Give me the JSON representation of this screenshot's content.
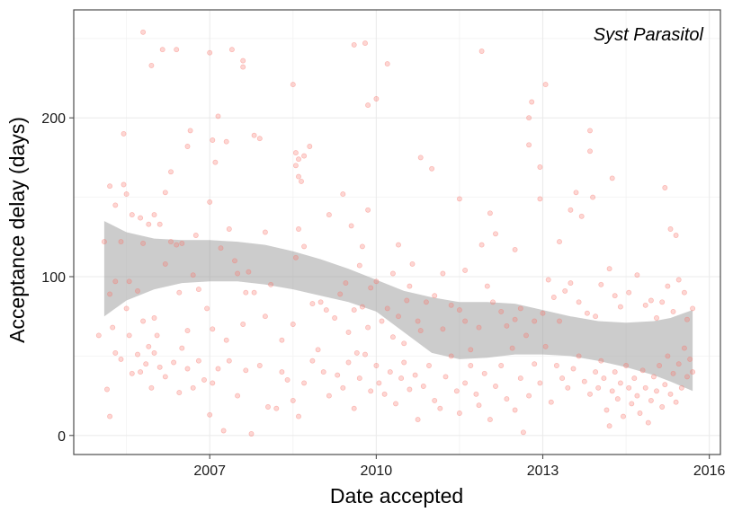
{
  "chart_data": {
    "type": "scatter",
    "title": "",
    "annotation": "Syst Parasitol",
    "xlabel": "Date accepted",
    "ylabel": "Acceptance delay (days)",
    "xlim": [
      2004.55,
      2016.2
    ],
    "ylim": [
      -12,
      268
    ],
    "x_ticks": [
      2007,
      2010,
      2013,
      2016
    ],
    "y_ticks": [
      0,
      100,
      200
    ],
    "grid": true,
    "point_color": "#F8766D",
    "point_alpha": 0.3,
    "ribbon_color": "#999999",
    "ribbon_alpha": 0.5,
    "smooth_band": {
      "x": [
        2005.1,
        2005.5,
        2006.0,
        2006.5,
        2007.0,
        2007.5,
        2008.0,
        2008.5,
        2009.0,
        2009.5,
        2010.0,
        2010.5,
        2011.0,
        2011.5,
        2012.0,
        2012.5,
        2013.0,
        2013.5,
        2014.0,
        2014.5,
        2015.0,
        2015.3,
        2015.7
      ],
      "lower": [
        75,
        85,
        92,
        96,
        97,
        97,
        95,
        92,
        88,
        84,
        78,
        65,
        52,
        48,
        49,
        51,
        51,
        50,
        47,
        43,
        38,
        34,
        28
      ],
      "upper": [
        135,
        128,
        124,
        123,
        123,
        122,
        120,
        116,
        111,
        105,
        98,
        91,
        87,
        84,
        84,
        83,
        79,
        75,
        72,
        71,
        72,
        74,
        79
      ]
    },
    "points": [
      [
        2005.8,
        254
      ],
      [
        2005.95,
        233
      ],
      [
        2006.15,
        243
      ],
      [
        2006.4,
        243
      ],
      [
        2007.0,
        241
      ],
      [
        2007.4,
        243
      ],
      [
        2007.6,
        236
      ],
      [
        2007.6,
        232
      ],
      [
        2009.6,
        246
      ],
      [
        2009.8,
        247
      ],
      [
        2010.2,
        234
      ],
      [
        2011.9,
        242
      ],
      [
        2013.05,
        221
      ],
      [
        2012.8,
        210
      ],
      [
        2008.5,
        221
      ],
      [
        2007.15,
        201
      ],
      [
        2009.85,
        208
      ],
      [
        2010.0,
        212
      ],
      [
        2012.75,
        200
      ],
      [
        2005.2,
        157
      ],
      [
        2005.3,
        145
      ],
      [
        2005.45,
        158
      ],
      [
        2005.5,
        152
      ],
      [
        2005.45,
        190
      ],
      [
        2005.6,
        139
      ],
      [
        2005.75,
        137
      ],
      [
        2005.8,
        121
      ],
      [
        2005.9,
        133
      ],
      [
        2006.0,
        139
      ],
      [
        2006.1,
        133
      ],
      [
        2006.2,
        153
      ],
      [
        2006.3,
        166
      ],
      [
        2006.4,
        120
      ],
      [
        2006.6,
        182
      ],
      [
        2006.65,
        192
      ],
      [
        2006.75,
        126
      ],
      [
        2007.0,
        147
      ],
      [
        2007.05,
        186
      ],
      [
        2007.1,
        172
      ],
      [
        2007.3,
        185
      ],
      [
        2007.35,
        130
      ],
      [
        2007.8,
        189
      ],
      [
        2007.9,
        187
      ],
      [
        2008.0,
        128
      ],
      [
        2008.55,
        178
      ],
      [
        2008.6,
        174
      ],
      [
        2008.55,
        170
      ],
      [
        2008.6,
        163
      ],
      [
        2008.7,
        176
      ],
      [
        2008.8,
        182
      ],
      [
        2008.65,
        160
      ],
      [
        2009.15,
        139
      ],
      [
        2009.4,
        152
      ],
      [
        2009.55,
        132
      ],
      [
        2009.7,
        107
      ],
      [
        2009.75,
        119
      ],
      [
        2009.85,
        142
      ],
      [
        2010.3,
        102
      ],
      [
        2010.4,
        120
      ],
      [
        2010.65,
        108
      ],
      [
        2010.8,
        175
      ],
      [
        2011.0,
        168
      ],
      [
        2011.2,
        102
      ],
      [
        2011.5,
        149
      ],
      [
        2011.6,
        104
      ],
      [
        2011.9,
        120
      ],
      [
        2012.05,
        140
      ],
      [
        2012.15,
        127
      ],
      [
        2012.5,
        117
      ],
      [
        2012.75,
        183
      ],
      [
        2012.95,
        169
      ],
      [
        2012.95,
        149
      ],
      [
        2013.3,
        122
      ],
      [
        2013.5,
        142
      ],
      [
        2013.6,
        153
      ],
      [
        2013.7,
        138
      ],
      [
        2013.85,
        179
      ],
      [
        2013.85,
        192
      ],
      [
        2013.9,
        150
      ],
      [
        2014.25,
        162
      ],
      [
        2015.2,
        156
      ],
      [
        2015.3,
        130
      ],
      [
        2015.4,
        126
      ],
      [
        2005.0,
        63
      ],
      [
        2005.1,
        122
      ],
      [
        2005.2,
        89
      ],
      [
        2005.25,
        68
      ],
      [
        2005.3,
        97
      ],
      [
        2005.4,
        122
      ],
      [
        2005.5,
        80
      ],
      [
        2005.55,
        97
      ],
      [
        2005.7,
        91
      ],
      [
        2005.8,
        72
      ],
      [
        2005.9,
        56
      ],
      [
        2006.0,
        74
      ],
      [
        2006.05,
        63
      ],
      [
        2006.2,
        108
      ],
      [
        2006.3,
        122
      ],
      [
        2006.45,
        90
      ],
      [
        2006.5,
        121
      ],
      [
        2006.6,
        66
      ],
      [
        2006.7,
        101
      ],
      [
        2006.8,
        92
      ],
      [
        2006.95,
        80
      ],
      [
        2007.05,
        67
      ],
      [
        2007.2,
        118
      ],
      [
        2007.3,
        60
      ],
      [
        2007.45,
        110
      ],
      [
        2007.5,
        102
      ],
      [
        2007.6,
        70
      ],
      [
        2007.65,
        90
      ],
      [
        2007.7,
        103
      ],
      [
        2007.8,
        90
      ],
      [
        2008.0,
        75
      ],
      [
        2008.1,
        95
      ],
      [
        2008.3,
        60
      ],
      [
        2008.5,
        70
      ],
      [
        2008.55,
        112
      ],
      [
        2008.6,
        130
      ],
      [
        2008.7,
        119
      ],
      [
        2008.85,
        83
      ],
      [
        2009.0,
        84
      ],
      [
        2009.1,
        79
      ],
      [
        2009.25,
        74
      ],
      [
        2009.35,
        89
      ],
      [
        2009.45,
        96
      ],
      [
        2009.5,
        65
      ],
      [
        2009.6,
        79
      ],
      [
        2009.65,
        52
      ],
      [
        2009.75,
        81
      ],
      [
        2009.85,
        68
      ],
      [
        2009.9,
        93
      ],
      [
        2010.0,
        97
      ],
      [
        2010.1,
        72
      ],
      [
        2010.2,
        80
      ],
      [
        2010.3,
        62
      ],
      [
        2010.4,
        75
      ],
      [
        2010.5,
        58
      ],
      [
        2010.55,
        85
      ],
      [
        2010.6,
        94
      ],
      [
        2010.75,
        72
      ],
      [
        2010.8,
        66
      ],
      [
        2010.9,
        84
      ],
      [
        2011.05,
        88
      ],
      [
        2011.2,
        67
      ],
      [
        2011.35,
        82
      ],
      [
        2011.5,
        79
      ],
      [
        2011.6,
        72
      ],
      [
        2011.7,
        54
      ],
      [
        2011.85,
        68
      ],
      [
        2012.0,
        94
      ],
      [
        2012.1,
        84
      ],
      [
        2012.25,
        78
      ],
      [
        2012.35,
        69
      ],
      [
        2012.5,
        73
      ],
      [
        2012.6,
        80
      ],
      [
        2012.7,
        63
      ],
      [
        2012.85,
        72
      ],
      [
        2013.0,
        77
      ],
      [
        2013.1,
        98
      ],
      [
        2013.2,
        87
      ],
      [
        2013.3,
        72
      ],
      [
        2013.4,
        91
      ],
      [
        2013.5,
        96
      ],
      [
        2013.65,
        84
      ],
      [
        2013.8,
        77
      ],
      [
        2013.95,
        75
      ],
      [
        2014.05,
        95
      ],
      [
        2014.2,
        105
      ],
      [
        2014.3,
        88
      ],
      [
        2014.4,
        81
      ],
      [
        2014.55,
        90
      ],
      [
        2014.7,
        101
      ],
      [
        2014.85,
        82
      ],
      [
        2014.95,
        85
      ],
      [
        2015.05,
        74
      ],
      [
        2015.15,
        84
      ],
      [
        2015.25,
        94
      ],
      [
        2015.35,
        78
      ],
      [
        2015.45,
        98
      ],
      [
        2015.55,
        90
      ],
      [
        2015.6,
        73
      ],
      [
        2015.7,
        80
      ],
      [
        2005.15,
        29
      ],
      [
        2005.2,
        12
      ],
      [
        2005.3,
        52
      ],
      [
        2005.4,
        48
      ],
      [
        2005.55,
        63
      ],
      [
        2005.6,
        39
      ],
      [
        2005.7,
        51
      ],
      [
        2005.75,
        40
      ],
      [
        2005.85,
        45
      ],
      [
        2005.95,
        30
      ],
      [
        2006.0,
        52
      ],
      [
        2006.1,
        43
      ],
      [
        2006.2,
        37
      ],
      [
        2006.35,
        46
      ],
      [
        2006.45,
        27
      ],
      [
        2006.5,
        55
      ],
      [
        2006.6,
        42
      ],
      [
        2006.7,
        30
      ],
      [
        2006.8,
        47
      ],
      [
        2006.9,
        35
      ],
      [
        2007.0,
        13
      ],
      [
        2007.05,
        33
      ],
      [
        2007.15,
        42
      ],
      [
        2007.25,
        3
      ],
      [
        2007.35,
        47
      ],
      [
        2007.5,
        25
      ],
      [
        2007.65,
        41
      ],
      [
        2007.75,
        1
      ],
      [
        2007.9,
        44
      ],
      [
        2008.05,
        18
      ],
      [
        2008.2,
        17
      ],
      [
        2008.3,
        40
      ],
      [
        2008.4,
        35
      ],
      [
        2008.5,
        22
      ],
      [
        2008.6,
        12
      ],
      [
        2008.7,
        33
      ],
      [
        2008.85,
        47
      ],
      [
        2008.95,
        54
      ],
      [
        2009.05,
        40
      ],
      [
        2009.15,
        25
      ],
      [
        2009.3,
        38
      ],
      [
        2009.4,
        30
      ],
      [
        2009.5,
        46
      ],
      [
        2009.6,
        17
      ],
      [
        2009.7,
        36
      ],
      [
        2009.8,
        51
      ],
      [
        2009.9,
        28
      ],
      [
        2010.0,
        44
      ],
      [
        2010.05,
        33
      ],
      [
        2010.15,
        26
      ],
      [
        2010.25,
        40
      ],
      [
        2010.35,
        20
      ],
      [
        2010.45,
        36
      ],
      [
        2010.5,
        46
      ],
      [
        2010.6,
        29
      ],
      [
        2010.7,
        38
      ],
      [
        2010.75,
        10
      ],
      [
        2010.85,
        31
      ],
      [
        2010.95,
        44
      ],
      [
        2011.05,
        22
      ],
      [
        2011.15,
        17
      ],
      [
        2011.25,
        37
      ],
      [
        2011.35,
        50
      ],
      [
        2011.45,
        28
      ],
      [
        2011.5,
        14
      ],
      [
        2011.6,
        33
      ],
      [
        2011.7,
        44
      ],
      [
        2011.8,
        26
      ],
      [
        2011.85,
        19
      ],
      [
        2011.95,
        39
      ],
      [
        2012.05,
        10
      ],
      [
        2012.15,
        31
      ],
      [
        2012.25,
        44
      ],
      [
        2012.35,
        23
      ],
      [
        2012.45,
        55
      ],
      [
        2012.5,
        16
      ],
      [
        2012.6,
        36
      ],
      [
        2012.65,
        2
      ],
      [
        2012.75,
        25
      ],
      [
        2012.85,
        45
      ],
      [
        2012.95,
        33
      ],
      [
        2013.05,
        56
      ],
      [
        2013.15,
        21
      ],
      [
        2013.25,
        44
      ],
      [
        2013.35,
        36
      ],
      [
        2013.45,
        30
      ],
      [
        2013.55,
        42
      ],
      [
        2013.65,
        50
      ],
      [
        2013.75,
        34
      ],
      [
        2013.85,
        26
      ],
      [
        2013.95,
        40
      ],
      [
        2014.0,
        30
      ],
      [
        2014.05,
        47
      ],
      [
        2014.1,
        36
      ],
      [
        2014.15,
        16
      ],
      [
        2014.2,
        6
      ],
      [
        2014.25,
        28
      ],
      [
        2014.3,
        40
      ],
      [
        2014.35,
        23
      ],
      [
        2014.4,
        33
      ],
      [
        2014.45,
        12
      ],
      [
        2014.5,
        44
      ],
      [
        2014.55,
        30
      ],
      [
        2014.6,
        20
      ],
      [
        2014.65,
        36
      ],
      [
        2014.7,
        25
      ],
      [
        2014.75,
        14
      ],
      [
        2014.8,
        41
      ],
      [
        2014.85,
        30
      ],
      [
        2014.9,
        8
      ],
      [
        2014.95,
        22
      ],
      [
        2015.0,
        37
      ],
      [
        2015.05,
        28
      ],
      [
        2015.1,
        44
      ],
      [
        2015.15,
        18
      ],
      [
        2015.2,
        32
      ],
      [
        2015.25,
        50
      ],
      [
        2015.3,
        26
      ],
      [
        2015.35,
        39
      ],
      [
        2015.4,
        21
      ],
      [
        2015.45,
        45
      ],
      [
        2015.5,
        30
      ],
      [
        2015.55,
        55
      ],
      [
        2015.6,
        37
      ],
      [
        2015.65,
        48
      ],
      [
        2015.7,
        40
      ]
    ]
  }
}
